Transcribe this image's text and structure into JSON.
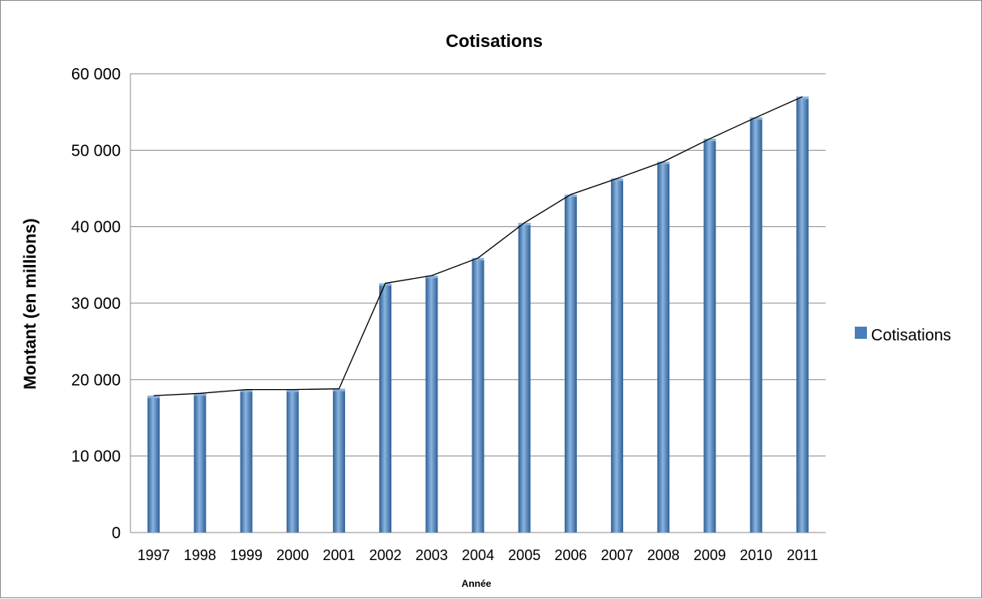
{
  "chart_data": {
    "type": "bar",
    "title": "Cotisations",
    "xlabel": "Année",
    "ylabel": "Montant (en millions)",
    "categories": [
      "1997",
      "1998",
      "1999",
      "2000",
      "2001",
      "2002",
      "2003",
      "2004",
      "2005",
      "2006",
      "2007",
      "2008",
      "2009",
      "2010",
      "2011"
    ],
    "series": [
      {
        "name": "Cotisations",
        "values": [
          17900,
          18200,
          18700,
          18700,
          18800,
          32600,
          33600,
          35900,
          40500,
          44200,
          46300,
          48500,
          51500,
          54300,
          57000
        ]
      }
    ],
    "ylim": [
      0,
      60000
    ],
    "yticks": [
      0,
      10000,
      20000,
      30000,
      40000,
      50000,
      60000
    ],
    "ytick_labels": [
      "0",
      "10 000",
      "20 000",
      "30 000",
      "40 000",
      "50 000",
      "60 000"
    ],
    "grid": true,
    "legend_position": "right",
    "trend_line": true,
    "colors": {
      "bar": "#4a7ebb",
      "bar_light": "#8ab4e0",
      "bar_dark": "#2f5f95",
      "grid": "#8c8c8c",
      "line": "#000000"
    }
  }
}
